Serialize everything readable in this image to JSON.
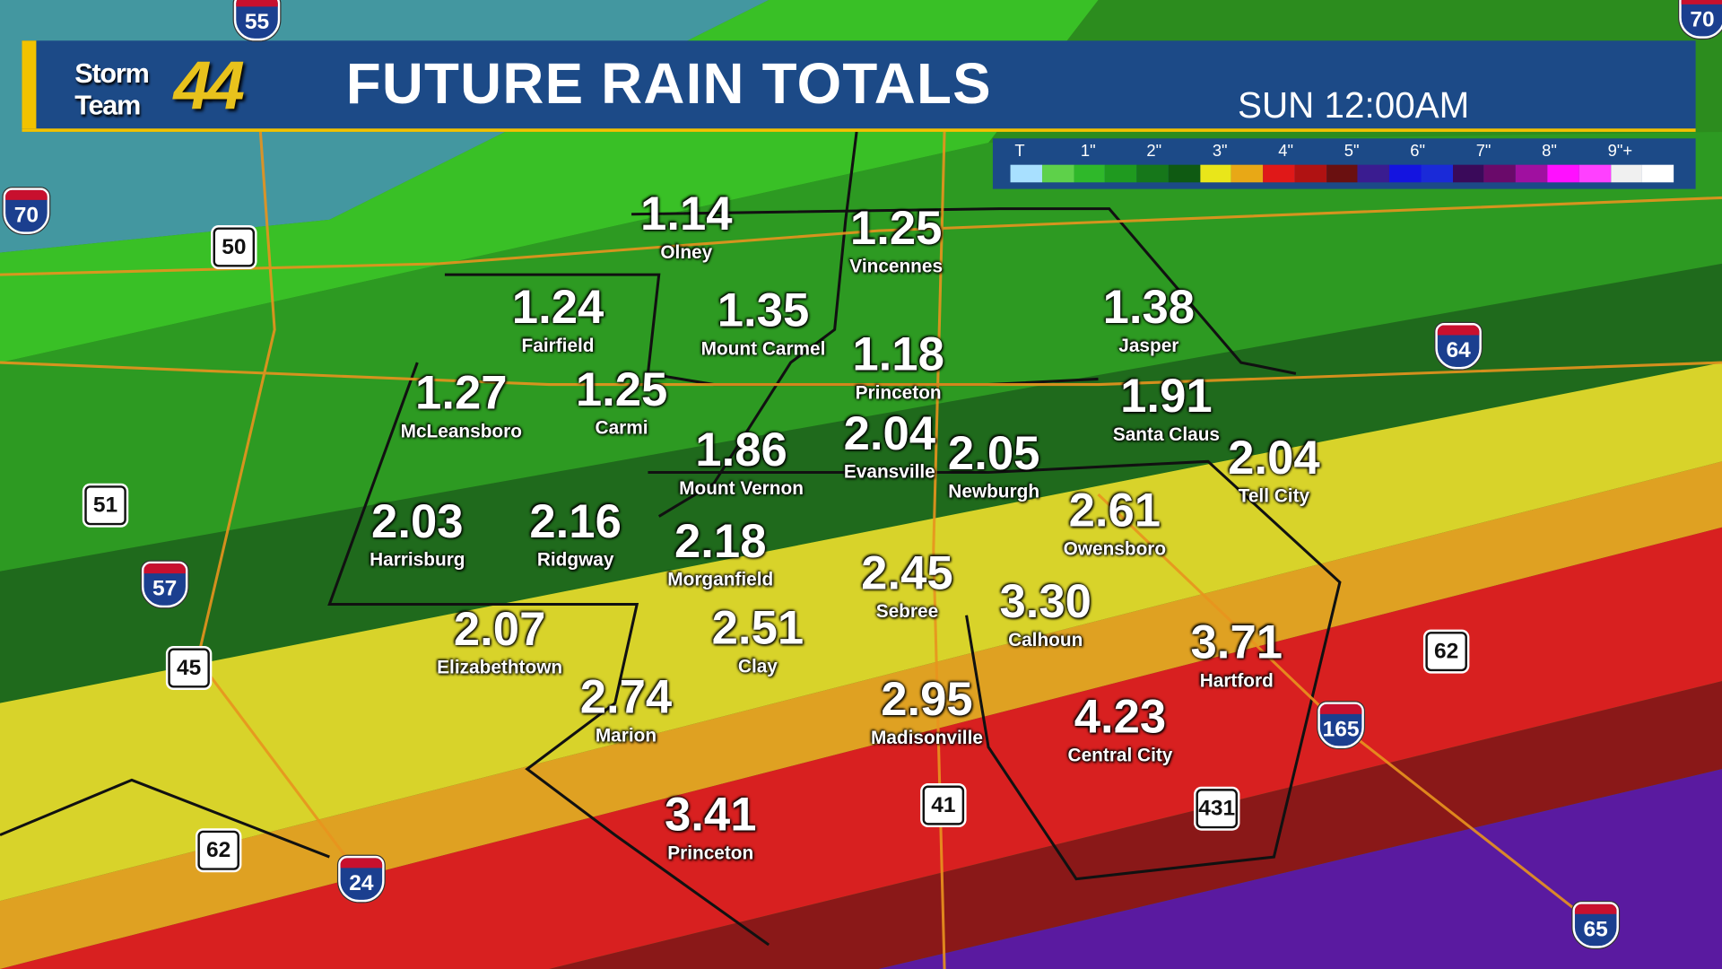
{
  "header": {
    "logo_text": "Storm Team",
    "logo_number": "44",
    "title": "FUTURE RAIN TOTALS",
    "time": "SUN 12:00AM"
  },
  "legend": {
    "labels": [
      "T",
      "1\"",
      "2\"",
      "3\"",
      "4\"",
      "5\"",
      "6\"",
      "7\"",
      "8\"",
      "9\"+"
    ],
    "colors": [
      "#a8e0ff",
      "#5ed14a",
      "#2fb82a",
      "#1f9a1f",
      "#16771a",
      "#0f5a12",
      "#e9e61a",
      "#e8a816",
      "#e01818",
      "#b01212",
      "#6a1010",
      "#3a1c90",
      "#1414e0",
      "#1a2ad8",
      "#3a0a5a",
      "#6a0a6a",
      "#a010a0",
      "#ff10ff",
      "#ff40ff",
      "#f0f0f0",
      "#ffffff"
    ]
  },
  "cities": [
    {
      "value": "1.14",
      "name": "Olney"
    },
    {
      "value": "1.25",
      "name": "Vincennes"
    },
    {
      "value": "1.24",
      "name": "Fairfield"
    },
    {
      "value": "1.35",
      "name": "Mount Carmel"
    },
    {
      "value": "1.38",
      "name": "Jasper"
    },
    {
      "value": "1.18",
      "name": "Princeton"
    },
    {
      "value": "1.27",
      "name": "McLeansboro"
    },
    {
      "value": "1.25",
      "name": "Carmi"
    },
    {
      "value": "1.91",
      "name": "Santa Claus"
    },
    {
      "value": "1.86",
      "name": "Mount Vernon"
    },
    {
      "value": "2.04",
      "name": "Evansville"
    },
    {
      "value": "2.04",
      "name": "Tell City"
    },
    {
      "value": "2.05",
      "name": "Newburgh"
    },
    {
      "value": "2.03",
      "name": "Harrisburg"
    },
    {
      "value": "2.16",
      "name": "Ridgway"
    },
    {
      "value": "2.18",
      "name": "Morganfield"
    },
    {
      "value": "2.61",
      "name": "Owensboro"
    },
    {
      "value": "2.45",
      "name": "Sebree"
    },
    {
      "value": "3.30",
      "name": "Calhoun"
    },
    {
      "value": "2.07",
      "name": "Elizabethtown"
    },
    {
      "value": "2.51",
      "name": "Clay"
    },
    {
      "value": "3.71",
      "name": "Hartford"
    },
    {
      "value": "2.74",
      "name": "Marion"
    },
    {
      "value": "2.95",
      "name": "Madisonville"
    },
    {
      "value": "4.23",
      "name": "Central City"
    },
    {
      "value": "3.41",
      "name": "Princeton"
    }
  ],
  "shields": [
    {
      "type": "interstate",
      "num": "55"
    },
    {
      "type": "interstate",
      "num": "70"
    },
    {
      "type": "interstate",
      "num": "70"
    },
    {
      "type": "us",
      "num": "50"
    },
    {
      "type": "interstate",
      "num": "64"
    },
    {
      "type": "us",
      "num": "51"
    },
    {
      "type": "interstate",
      "num": "57"
    },
    {
      "type": "us",
      "num": "45"
    },
    {
      "type": "us",
      "num": "62"
    },
    {
      "type": "interstate",
      "num": "165"
    },
    {
      "type": "us",
      "num": "41"
    },
    {
      "type": "us",
      "num": "431"
    },
    {
      "type": "us",
      "num": "62"
    },
    {
      "type": "interstate",
      "num": "24"
    },
    {
      "type": "interstate",
      "num": "65"
    }
  ]
}
